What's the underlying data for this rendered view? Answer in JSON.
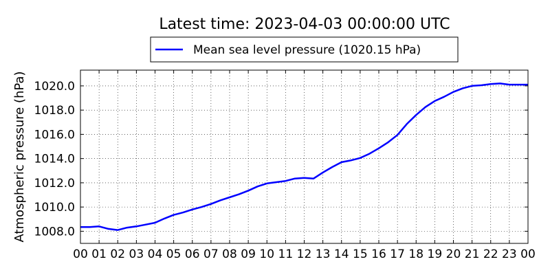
{
  "chart_data": {
    "type": "line",
    "title": "Latest time: 2023-04-03 00:00:00 UTC",
    "xlabel": "",
    "ylabel": "Atmospheric pressure (hPa)",
    "x_unit": "hour",
    "xlim": [
      0,
      24
    ],
    "ylim": [
      1007.0,
      1021.3
    ],
    "x_tick_values": [
      0,
      1,
      2,
      3,
      4,
      5,
      6,
      7,
      8,
      9,
      10,
      11,
      12,
      13,
      14,
      15,
      16,
      17,
      18,
      19,
      20,
      21,
      22,
      23,
      24
    ],
    "x_tick_labels": [
      "00",
      "01",
      "02",
      "03",
      "04",
      "05",
      "06",
      "07",
      "08",
      "09",
      "10",
      "11",
      "12",
      "13",
      "14",
      "15",
      "16",
      "17",
      "18",
      "19",
      "20",
      "21",
      "22",
      "23",
      "00"
    ],
    "y_tick_values": [
      1008,
      1010,
      1012,
      1014,
      1016,
      1018,
      1020
    ],
    "y_tick_labels": [
      "1008.0",
      "1010.0",
      "1012.0",
      "1014.0",
      "1016.0",
      "1018.0",
      "1020.0"
    ],
    "grid": true,
    "legend_position": "top-center, above plot",
    "series": [
      {
        "name": "Mean sea level pressure (1020.15 hPa)",
        "color": "#0000ff",
        "x": [
          0,
          0.5,
          1.0,
          1.5,
          2.0,
          2.5,
          3.0,
          3.5,
          4.0,
          4.5,
          5.0,
          5.5,
          6.0,
          6.5,
          7.0,
          7.5,
          8.0,
          8.5,
          9.0,
          9.5,
          10.0,
          10.5,
          11.0,
          11.5,
          12.0,
          12.5,
          13.0,
          13.5,
          14.0,
          14.5,
          15.0,
          15.5,
          16.0,
          16.5,
          17.0,
          17.5,
          18.0,
          18.5,
          19.0,
          19.5,
          20.0,
          20.5,
          21.0,
          21.5,
          22.0,
          22.5,
          23.0,
          23.5,
          24.0
        ],
        "y": [
          1008.35,
          1008.35,
          1008.4,
          1008.2,
          1008.1,
          1008.3,
          1008.4,
          1008.55,
          1008.7,
          1009.05,
          1009.35,
          1009.55,
          1009.8,
          1010.0,
          1010.25,
          1010.55,
          1010.8,
          1011.05,
          1011.35,
          1011.7,
          1011.95,
          1012.05,
          1012.15,
          1012.35,
          1012.4,
          1012.35,
          1012.85,
          1013.3,
          1013.7,
          1013.85,
          1014.05,
          1014.4,
          1014.85,
          1015.35,
          1015.95,
          1016.85,
          1017.6,
          1018.25,
          1018.75,
          1019.1,
          1019.5,
          1019.8,
          1020.0,
          1020.05,
          1020.15,
          1020.2,
          1020.1,
          1020.1,
          1020.1
        ]
      }
    ]
  }
}
